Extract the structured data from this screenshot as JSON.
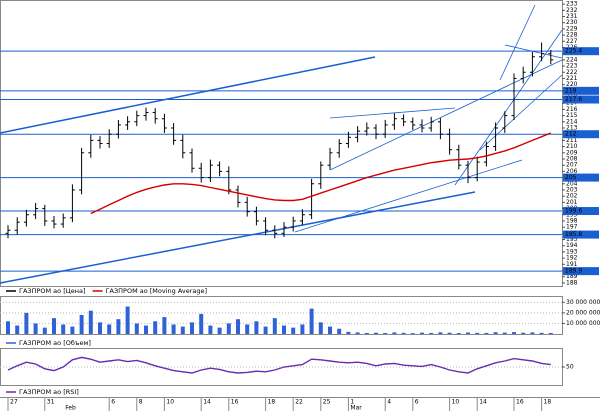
{
  "chart_data": [
    {
      "type": "ohlc",
      "series": [
        {
          "name": "ГАЗПРОМ ао [Цена]",
          "color": "#000000",
          "open": [
            196,
            196.5,
            197.8,
            199,
            200,
            198,
            197.5,
            198.5,
            203,
            209,
            211,
            210.5,
            212,
            213.5,
            214,
            215,
            215.5,
            214.5,
            213,
            211,
            209,
            206.5,
            205,
            207,
            206,
            203,
            201,
            199.5,
            198,
            196.5,
            196,
            197,
            198,
            199,
            204,
            207,
            209,
            210.5,
            211.5,
            212.5,
            213,
            212,
            213.5,
            214.5,
            214,
            213.5,
            213,
            214,
            212,
            209.5,
            207,
            205,
            207.5,
            210,
            213,
            215,
            221,
            222,
            224.5,
            225
          ],
          "high": [
            197.3,
            198.6,
            199.8,
            200.9,
            200.6,
            198.8,
            199.2,
            203.9,
            209.8,
            211.9,
            211.7,
            212.8,
            214.3,
            214.9,
            215.8,
            216.3,
            216.2,
            215.3,
            213.8,
            211.9,
            209.7,
            207.4,
            207.9,
            207.6,
            206.8,
            203.7,
            201.9,
            200.3,
            198.6,
            197.3,
            197.8,
            198.7,
            199.9,
            204.8,
            207.6,
            209.8,
            211.2,
            212.4,
            213.3,
            213.9,
            213.6,
            214.3,
            215.4,
            215.2,
            214.7,
            214.4,
            214.8,
            214.6,
            212.9,
            210.3,
            207.7,
            208.4,
            210.8,
            213.9,
            215.7,
            221.8,
            222.9,
            225.3,
            226.8,
            225.6
          ],
          "low": [
            195.2,
            195.8,
            197.1,
            198.3,
            197.2,
            196.8,
            196.9,
            197.8,
            202.3,
            208.2,
            209.7,
            209.8,
            211.3,
            212.7,
            213.3,
            214.2,
            213.7,
            212.2,
            210.3,
            208.1,
            205.8,
            204.2,
            204.3,
            205.2,
            202.3,
            200.2,
            198.7,
            197.3,
            195.7,
            195.2,
            195.4,
            196.3,
            197.4,
            198.3,
            203.2,
            206.3,
            208.2,
            209.8,
            210.7,
            211.8,
            211.2,
            211.4,
            212.7,
            213.3,
            212.7,
            212.3,
            212.4,
            211.2,
            208.7,
            206.3,
            204.1,
            204.4,
            206.8,
            209.3,
            212.2,
            214.3,
            220.2,
            221.3,
            223.8,
            223.3
          ],
          "close": [
            196.5,
            197.8,
            199,
            200,
            198,
            197.5,
            198.5,
            203,
            209,
            211,
            210.5,
            212,
            213.5,
            214,
            215,
            215.5,
            214.5,
            213,
            211,
            209,
            206.5,
            205,
            207,
            206,
            203,
            201,
            199.5,
            198,
            196.5,
            196,
            197,
            198,
            199,
            204,
            207,
            209,
            210.5,
            211.5,
            212.5,
            213,
            212,
            213.5,
            214.5,
            214,
            213.5,
            213,
            214,
            212,
            209.5,
            207,
            205,
            207.5,
            210,
            213,
            215,
            221,
            222,
            224.5,
            225,
            224
          ]
        },
        {
          "name": "ГАЗПРОМ ао [Moving Average]",
          "color": "#d40000",
          "values": [
            null,
            null,
            null,
            null,
            null,
            null,
            null,
            null,
            null,
            199.2,
            199.9,
            200.6,
            201.3,
            202,
            202.6,
            203.1,
            203.5,
            203.8,
            204,
            204,
            203.9,
            203.7,
            203.4,
            203.1,
            202.8,
            202.5,
            202.2,
            201.9,
            201.6,
            201.4,
            201.3,
            201.3,
            201.5,
            202,
            202.5,
            203,
            203.5,
            204,
            204.5,
            205,
            205.4,
            205.8,
            206.2,
            206.5,
            206.8,
            207.1,
            207.4,
            207.6,
            207.8,
            207.9,
            208,
            208.2,
            208.5,
            208.9,
            209.3,
            209.8,
            210.4,
            211,
            211.6,
            212.2
          ]
        }
      ],
      "categories": [
        "27",
        null,
        null,
        null,
        "31",
        null,
        null,
        null,
        null,
        null,
        null,
        "6",
        null,
        null,
        "8",
        null,
        null,
        "10",
        null,
        null,
        null,
        "14",
        null,
        null,
        "16",
        null,
        null,
        null,
        "18",
        null,
        null,
        "22",
        null,
        null,
        "25",
        null,
        null,
        "1",
        null,
        null,
        null,
        "4",
        null,
        null,
        "6",
        null,
        null,
        null,
        "10",
        null,
        null,
        "14",
        null,
        null,
        null,
        "16",
        null,
        null,
        "18",
        null
      ],
      "month_labels": [
        null,
        null,
        null,
        null,
        null,
        null,
        "Feb",
        null,
        null,
        null,
        null,
        null,
        null,
        null,
        null,
        null,
        null,
        null,
        null,
        null,
        null,
        null,
        null,
        null,
        null,
        null,
        null,
        null,
        null,
        null,
        null,
        null,
        null,
        null,
        null,
        null,
        null,
        "Mar",
        null,
        null,
        null,
        null,
        null,
        null,
        null,
        null,
        null,
        null,
        null,
        null,
        null,
        null,
        null,
        null,
        null,
        null,
        null,
        null,
        null,
        null
      ],
      "ylim": [
        187.5,
        233.5
      ],
      "yticks": [
        188,
        189,
        190,
        191,
        192,
        193,
        194,
        195,
        196,
        197,
        198,
        199,
        200,
        201,
        202,
        203,
        204,
        205,
        206,
        207,
        208,
        209,
        210,
        211,
        212,
        213,
        214,
        215,
        216,
        217,
        218,
        219,
        220,
        221,
        222,
        223,
        224,
        225,
        226,
        227,
        228,
        229,
        230,
        231,
        232,
        233
      ],
      "levels": [
        225.4,
        219,
        217.6,
        212,
        205,
        199.6,
        195.8,
        189.9
      ],
      "level_color": "#1a5fd0"
    },
    {
      "type": "bar",
      "series": [
        {
          "name": "ГАЗПРОМ ао [Объем]",
          "color": "#2f62d6",
          "values": [
            12000000,
            8000000,
            20000000,
            10000000,
            6000000,
            15000000,
            9000000,
            7000000,
            18000000,
            22000000,
            11000000,
            9000000,
            14000000,
            26000000,
            10000000,
            8000000,
            12000000,
            16000000,
            9000000,
            7000000,
            11000000,
            19000000,
            8000000,
            6000000,
            10000000,
            14000000,
            9000000,
            12000000,
            7000000,
            15000000,
            8000000,
            6000000,
            9000000,
            24000000,
            11000000,
            7000000,
            5000000,
            2000000,
            1500000,
            1000000,
            1200000,
            900000,
            1500000,
            1100000,
            800000,
            1300000,
            1000000,
            1600000,
            1200000,
            900000,
            1400000,
            1100000,
            1000000,
            1700000,
            1300000,
            1800000,
            1200000,
            1500000,
            1100000,
            1000000
          ]
        }
      ],
      "ylim": [
        0,
        35000000
      ],
      "yticks": [
        {
          "value": 10000000,
          "label": "10 000 000"
        },
        {
          "value": 20000000,
          "label": "20 000 000"
        },
        {
          "value": 30000000,
          "label": "30 000 000"
        }
      ]
    },
    {
      "type": "line",
      "series": [
        {
          "name": "ГАЗПРОМ ао [RSI]",
          "color": "#6a2bb0",
          "values": [
            45,
            52,
            58,
            55,
            47,
            44,
            50,
            62,
            66,
            63,
            58,
            60,
            62,
            59,
            61,
            57,
            52,
            48,
            44,
            42,
            40,
            45,
            48,
            46,
            42,
            40,
            41,
            43,
            42,
            45,
            50,
            52,
            54,
            63,
            62,
            60,
            58,
            57,
            58,
            56,
            52,
            55,
            56,
            53,
            52,
            51,
            54,
            50,
            45,
            42,
            40,
            47,
            52,
            57,
            60,
            64,
            62,
            60,
            56,
            54
          ]
        }
      ],
      "ylim": [
        20,
        80
      ],
      "yticks": [
        50
      ]
    }
  ]
}
